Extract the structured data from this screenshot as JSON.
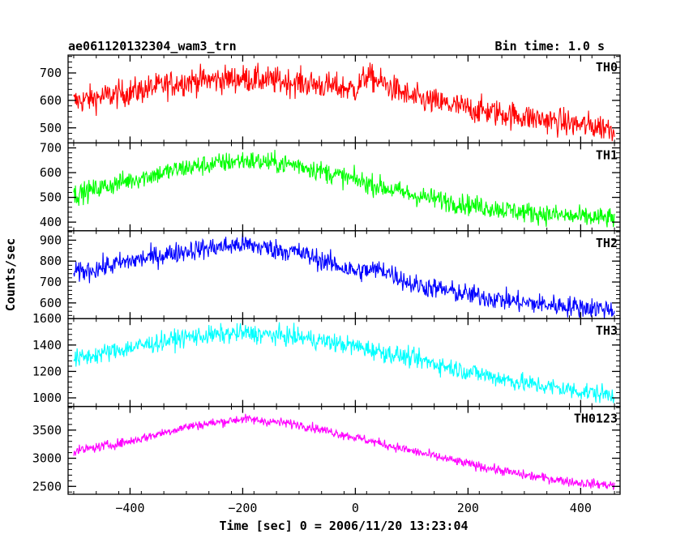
{
  "chart_data": {
    "type": "line",
    "title": "ae061120132304_wam3_trn",
    "subtitle": "Bin time: 1.0 s",
    "xlabel": "Time [sec] 0 = 2006/11/20 13:23:04",
    "ylabel": "Counts/sec",
    "xlim": [
      -510,
      470
    ],
    "x_ticks": [
      -400,
      -200,
      0,
      200,
      400
    ],
    "x_tick_labels": [
      "−400",
      "−200",
      "0",
      "200",
      "400"
    ],
    "x_data_range": [
      -500,
      460
    ],
    "grid": false,
    "panels": [
      {
        "name": "TH0",
        "color": "#ff0000",
        "ylim": [
          445,
          765
        ],
        "y_ticks": [
          500,
          600,
          700
        ],
        "y_tick_labels": [
          "500",
          "600",
          "700"
        ],
        "noise": 42,
        "trend": [
          [
            -500,
            595
          ],
          [
            -400,
            630
          ],
          [
            -300,
            670
          ],
          [
            -200,
            680
          ],
          [
            -100,
            665
          ],
          [
            0,
            640
          ],
          [
            20,
            690
          ],
          [
            60,
            650
          ],
          [
            100,
            610
          ],
          [
            200,
            570
          ],
          [
            300,
            540
          ],
          [
            400,
            510
          ],
          [
            460,
            500
          ]
        ]
      },
      {
        "name": "TH1",
        "color": "#00ff00",
        "ylim": [
          365,
          720
        ],
        "y_ticks": [
          400,
          500,
          600,
          700
        ],
        "y_tick_labels": [
          "400",
          "500",
          "600",
          "700"
        ],
        "noise": 35,
        "trend": [
          [
            -500,
            510
          ],
          [
            -400,
            570
          ],
          [
            -300,
            620
          ],
          [
            -200,
            650
          ],
          [
            -100,
            630
          ],
          [
            0,
            570
          ],
          [
            100,
            510
          ],
          [
            200,
            470
          ],
          [
            300,
            440
          ],
          [
            400,
            420
          ],
          [
            460,
            415
          ]
        ]
      },
      {
        "name": "TH2",
        "color": "#0000ff",
        "ylim": [
          525,
          945
        ],
        "y_ticks": [
          600,
          700,
          800,
          900
        ],
        "y_tick_labels": [
          "600",
          "700",
          "800",
          "900"
        ],
        "noise": 42,
        "trend": [
          [
            -500,
            740
          ],
          [
            -400,
            800
          ],
          [
            -300,
            850
          ],
          [
            -200,
            880
          ],
          [
            -100,
            840
          ],
          [
            0,
            750
          ],
          [
            50,
            760
          ],
          [
            100,
            690
          ],
          [
            200,
            640
          ],
          [
            300,
            600
          ],
          [
            400,
            580
          ],
          [
            460,
            570
          ]
        ]
      },
      {
        "name": "TH3",
        "color": "#00ffff",
        "ylim": [
          935,
          1600
        ],
        "y_ticks": [
          1000,
          1200,
          1400,
          1600
        ],
        "y_tick_labels": [
          "1000",
          "1200",
          "1400",
          "1600"
        ],
        "noise": 60,
        "trend": [
          [
            -500,
            1290
          ],
          [
            -400,
            1380
          ],
          [
            -300,
            1460
          ],
          [
            -200,
            1490
          ],
          [
            -100,
            1460
          ],
          [
            0,
            1390
          ],
          [
            100,
            1300
          ],
          [
            200,
            1200
          ],
          [
            300,
            1110
          ],
          [
            400,
            1050
          ],
          [
            460,
            1020
          ]
        ]
      },
      {
        "name": "TH0123",
        "color": "#ff00ff",
        "ylim": [
          2360,
          3920
        ],
        "y_ticks": [
          2500,
          3000,
          3500
        ],
        "y_tick_labels": [
          "2500",
          "3000",
          "3500"
        ],
        "noise": 70,
        "trend": [
          [
            -500,
            3120
          ],
          [
            -400,
            3300
          ],
          [
            -300,
            3560
          ],
          [
            -200,
            3700
          ],
          [
            -100,
            3600
          ],
          [
            0,
            3370
          ],
          [
            100,
            3130
          ],
          [
            200,
            2900
          ],
          [
            300,
            2700
          ],
          [
            400,
            2560
          ],
          [
            460,
            2520
          ]
        ]
      }
    ]
  }
}
